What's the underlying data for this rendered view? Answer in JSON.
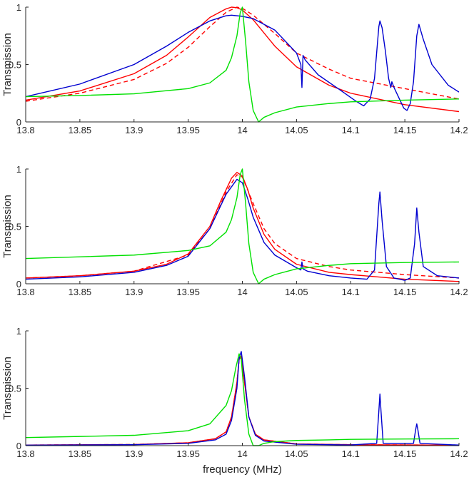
{
  "chart_data": [
    {
      "type": "line",
      "panel": "top",
      "title": "",
      "xlabel": "",
      "ylabel": "Transmission",
      "xlim": [
        13.8,
        14.2
      ],
      "ylim": [
        0,
        1
      ],
      "xticks": [
        13.8,
        13.85,
        13.9,
        13.95,
        14.0,
        14.05,
        14.1,
        14.15,
        14.2
      ],
      "xtick_labels": [
        "13.8",
        "13.85",
        "13.9",
        "13.95",
        "14",
        "14.05",
        "14.1",
        "14.15",
        "14.2"
      ],
      "yticks": [
        0,
        0.5,
        1
      ],
      "ytick_labels": [
        "0",
        "0.5",
        "1"
      ],
      "grid": false,
      "series": [
        {
          "name": "red-solid",
          "color": "#ff0000",
          "dash": "solid",
          "x": [
            13.8,
            13.85,
            13.9,
            13.93,
            13.95,
            13.97,
            13.985,
            13.99,
            13.995,
            14.0,
            14.01,
            14.03,
            14.05,
            14.08,
            14.1,
            14.15,
            14.2
          ],
          "y": [
            0.19,
            0.27,
            0.42,
            0.58,
            0.74,
            0.91,
            0.985,
            1.0,
            0.995,
            0.975,
            0.89,
            0.66,
            0.48,
            0.32,
            0.25,
            0.15,
            0.09
          ]
        },
        {
          "name": "red-dashed",
          "color": "#ff0000",
          "dash": "dashed",
          "x": [
            13.8,
            13.85,
            13.9,
            13.93,
            13.95,
            13.97,
            13.985,
            13.995,
            14.0,
            14.01,
            14.03,
            14.05,
            14.08,
            14.1,
            14.15,
            14.2
          ],
          "y": [
            0.18,
            0.25,
            0.37,
            0.51,
            0.65,
            0.83,
            0.955,
            1.0,
            0.99,
            0.93,
            0.77,
            0.6,
            0.46,
            0.38,
            0.29,
            0.2
          ]
        },
        {
          "name": "blue",
          "color": "#0000d0",
          "dash": "solid",
          "x": [
            13.8,
            13.85,
            13.9,
            13.93,
            13.95,
            13.97,
            13.985,
            13.99,
            14.0,
            14.01,
            14.03,
            14.05,
            14.054,
            14.055,
            14.056,
            14.058,
            14.07,
            14.09,
            14.105,
            14.112,
            14.118,
            14.122,
            14.126,
            14.127,
            14.129,
            14.132,
            14.135,
            14.137,
            14.138,
            14.14,
            14.145,
            14.149,
            14.152,
            14.155,
            14.158,
            14.161,
            14.163,
            14.167,
            14.175,
            14.19,
            14.2
          ],
          "y": [
            0.22,
            0.33,
            0.5,
            0.66,
            0.78,
            0.88,
            0.925,
            0.93,
            0.92,
            0.9,
            0.8,
            0.6,
            0.5,
            0.3,
            0.58,
            0.54,
            0.41,
            0.28,
            0.18,
            0.14,
            0.2,
            0.38,
            0.83,
            0.88,
            0.82,
            0.62,
            0.38,
            0.3,
            0.35,
            0.3,
            0.2,
            0.12,
            0.1,
            0.16,
            0.35,
            0.75,
            0.85,
            0.72,
            0.5,
            0.32,
            0.26
          ]
        },
        {
          "name": "green",
          "color": "#00e000",
          "dash": "solid",
          "x": [
            13.8,
            13.85,
            13.9,
            13.95,
            13.97,
            13.985,
            13.99,
            13.995,
            13.998,
            14.0,
            14.003,
            14.006,
            14.01,
            14.015,
            14.02,
            14.03,
            14.05,
            14.08,
            14.1,
            14.15,
            14.2
          ],
          "y": [
            0.22,
            0.23,
            0.245,
            0.29,
            0.34,
            0.45,
            0.56,
            0.75,
            0.95,
            1.0,
            0.7,
            0.35,
            0.1,
            0.0,
            0.04,
            0.08,
            0.13,
            0.16,
            0.175,
            0.19,
            0.2
          ]
        }
      ]
    },
    {
      "type": "line",
      "panel": "middle",
      "title": "",
      "xlabel": "",
      "ylabel": "Transmission",
      "xlim": [
        13.8,
        14.2
      ],
      "ylim": [
        0,
        1
      ],
      "xticks": [
        13.8,
        13.85,
        13.9,
        13.95,
        14.0,
        14.05,
        14.1,
        14.15,
        14.2
      ],
      "xtick_labels": [
        "13.8",
        "13.85",
        "13.9",
        "13.95",
        "14",
        "14.05",
        "14.1",
        "14.15",
        "14.2"
      ],
      "yticks": [
        0,
        0.5,
        1
      ],
      "ytick_labels": [
        "0",
        "0.5",
        "1"
      ],
      "grid": false,
      "series": [
        {
          "name": "red-solid",
          "color": "#ff0000",
          "dash": "solid",
          "x": [
            13.8,
            13.85,
            13.9,
            13.93,
            13.95,
            13.97,
            13.98,
            13.99,
            13.995,
            14.0,
            14.005,
            14.01,
            14.02,
            14.03,
            14.05,
            14.08,
            14.1,
            14.15,
            14.2
          ],
          "y": [
            0.05,
            0.07,
            0.11,
            0.17,
            0.26,
            0.5,
            0.72,
            0.92,
            0.97,
            0.94,
            0.82,
            0.66,
            0.43,
            0.3,
            0.17,
            0.1,
            0.08,
            0.04,
            0.02
          ]
        },
        {
          "name": "red-dashed",
          "color": "#ff0000",
          "dash": "dashed",
          "x": [
            13.8,
            13.85,
            13.9,
            13.95,
            13.97,
            13.985,
            13.995,
            14.0,
            14.01,
            14.02,
            14.03,
            14.05,
            14.08,
            14.1,
            14.15,
            14.2
          ],
          "y": [
            0.05,
            0.07,
            0.11,
            0.25,
            0.48,
            0.8,
            0.95,
            0.93,
            0.7,
            0.48,
            0.35,
            0.22,
            0.15,
            0.12,
            0.08,
            0.05
          ]
        },
        {
          "name": "blue",
          "color": "#0000d0",
          "dash": "solid",
          "x": [
            13.8,
            13.85,
            13.9,
            13.93,
            13.95,
            13.97,
            13.985,
            13.995,
            14.0,
            14.005,
            14.01,
            14.02,
            14.03,
            14.05,
            14.054,
            14.055,
            14.056,
            14.06,
            14.08,
            14.1,
            14.115,
            14.122,
            14.126,
            14.127,
            14.129,
            14.133,
            14.14,
            14.15,
            14.155,
            14.159,
            14.161,
            14.163,
            14.167,
            14.18,
            14.2
          ],
          "y": [
            0.04,
            0.06,
            0.1,
            0.16,
            0.24,
            0.48,
            0.78,
            0.91,
            0.88,
            0.74,
            0.58,
            0.36,
            0.25,
            0.14,
            0.12,
            0.19,
            0.13,
            0.11,
            0.07,
            0.05,
            0.04,
            0.12,
            0.7,
            0.8,
            0.55,
            0.15,
            0.05,
            0.03,
            0.05,
            0.35,
            0.66,
            0.45,
            0.15,
            0.07,
            0.05
          ]
        },
        {
          "name": "green",
          "color": "#00e000",
          "dash": "solid",
          "x": [
            13.8,
            13.85,
            13.9,
            13.95,
            13.97,
            13.985,
            13.99,
            13.995,
            13.998,
            14.0,
            14.003,
            14.006,
            14.01,
            14.015,
            14.02,
            14.03,
            14.05,
            14.08,
            14.1,
            14.15,
            14.2
          ],
          "y": [
            0.22,
            0.235,
            0.25,
            0.29,
            0.33,
            0.45,
            0.56,
            0.75,
            0.95,
            1.0,
            0.7,
            0.35,
            0.1,
            0.0,
            0.04,
            0.08,
            0.13,
            0.16,
            0.175,
            0.185,
            0.19
          ]
        }
      ]
    },
    {
      "type": "line",
      "panel": "bottom",
      "title": "",
      "xlabel": "frequency (MHz)",
      "ylabel": "Transmission",
      "xlim": [
        13.8,
        14.2
      ],
      "ylim": [
        0,
        1
      ],
      "xticks": [
        13.8,
        13.85,
        13.9,
        13.95,
        14.0,
        14.05,
        14.1,
        14.15,
        14.2
      ],
      "xtick_labels": [
        "13.8",
        "13.85",
        "13.9",
        "13.95",
        "14",
        "14.05",
        "14.1",
        "14.15",
        "14.2"
      ],
      "yticks": [
        0,
        0.5,
        1
      ],
      "ytick_labels": [
        "0",
        "0.5",
        "1"
      ],
      "grid": false,
      "series": [
        {
          "name": "red-solid",
          "color": "#ff0000",
          "dash": "solid",
          "x": [
            13.8,
            13.9,
            13.95,
            13.975,
            13.985,
            13.99,
            13.995,
            13.997,
            13.999,
            14.002,
            14.006,
            14.012,
            14.02,
            14.05,
            14.1,
            14.2
          ],
          "y": [
            0.005,
            0.01,
            0.025,
            0.06,
            0.12,
            0.25,
            0.55,
            0.75,
            0.78,
            0.55,
            0.25,
            0.1,
            0.05,
            0.015,
            0.008,
            0.004
          ]
        },
        {
          "name": "red-dashed",
          "color": "#ff0000",
          "dash": "dashed",
          "x": [
            13.8,
            13.9,
            13.95,
            13.975,
            13.985,
            13.99,
            13.995,
            13.997,
            13.999,
            14.002,
            14.006,
            14.012,
            14.02,
            14.05,
            14.1,
            14.2
          ],
          "y": [
            0.005,
            0.01,
            0.025,
            0.06,
            0.12,
            0.25,
            0.55,
            0.75,
            0.78,
            0.55,
            0.25,
            0.1,
            0.05,
            0.015,
            0.008,
            0.004
          ]
        },
        {
          "name": "blue",
          "color": "#0000d0",
          "dash": "solid",
          "x": [
            13.8,
            13.9,
            13.95,
            13.975,
            13.985,
            13.99,
            13.995,
            13.997,
            13.999,
            14.002,
            14.006,
            14.012,
            14.02,
            14.05,
            14.1,
            14.124,
            14.126,
            14.127,
            14.128,
            14.13,
            14.158,
            14.16,
            14.161,
            14.162,
            14.164,
            14.2
          ],
          "y": [
            0.004,
            0.008,
            0.02,
            0.05,
            0.1,
            0.22,
            0.5,
            0.76,
            0.82,
            0.6,
            0.25,
            0.09,
            0.04,
            0.012,
            0.006,
            0.02,
            0.3,
            0.45,
            0.3,
            0.02,
            0.02,
            0.14,
            0.19,
            0.14,
            0.02,
            0.005
          ]
        },
        {
          "name": "green",
          "color": "#00e000",
          "dash": "solid",
          "x": [
            13.8,
            13.85,
            13.9,
            13.95,
            13.97,
            13.985,
            13.99,
            13.994,
            13.997,
            13.999,
            14.002,
            14.006,
            14.01,
            14.015,
            14.02,
            14.03,
            14.05,
            14.08,
            14.1,
            14.15,
            14.2
          ],
          "y": [
            0.07,
            0.08,
            0.09,
            0.13,
            0.19,
            0.35,
            0.48,
            0.68,
            0.8,
            0.75,
            0.4,
            0.1,
            0.0,
            0.0,
            0.02,
            0.035,
            0.045,
            0.05,
            0.055,
            0.058,
            0.06
          ]
        }
      ]
    }
  ]
}
